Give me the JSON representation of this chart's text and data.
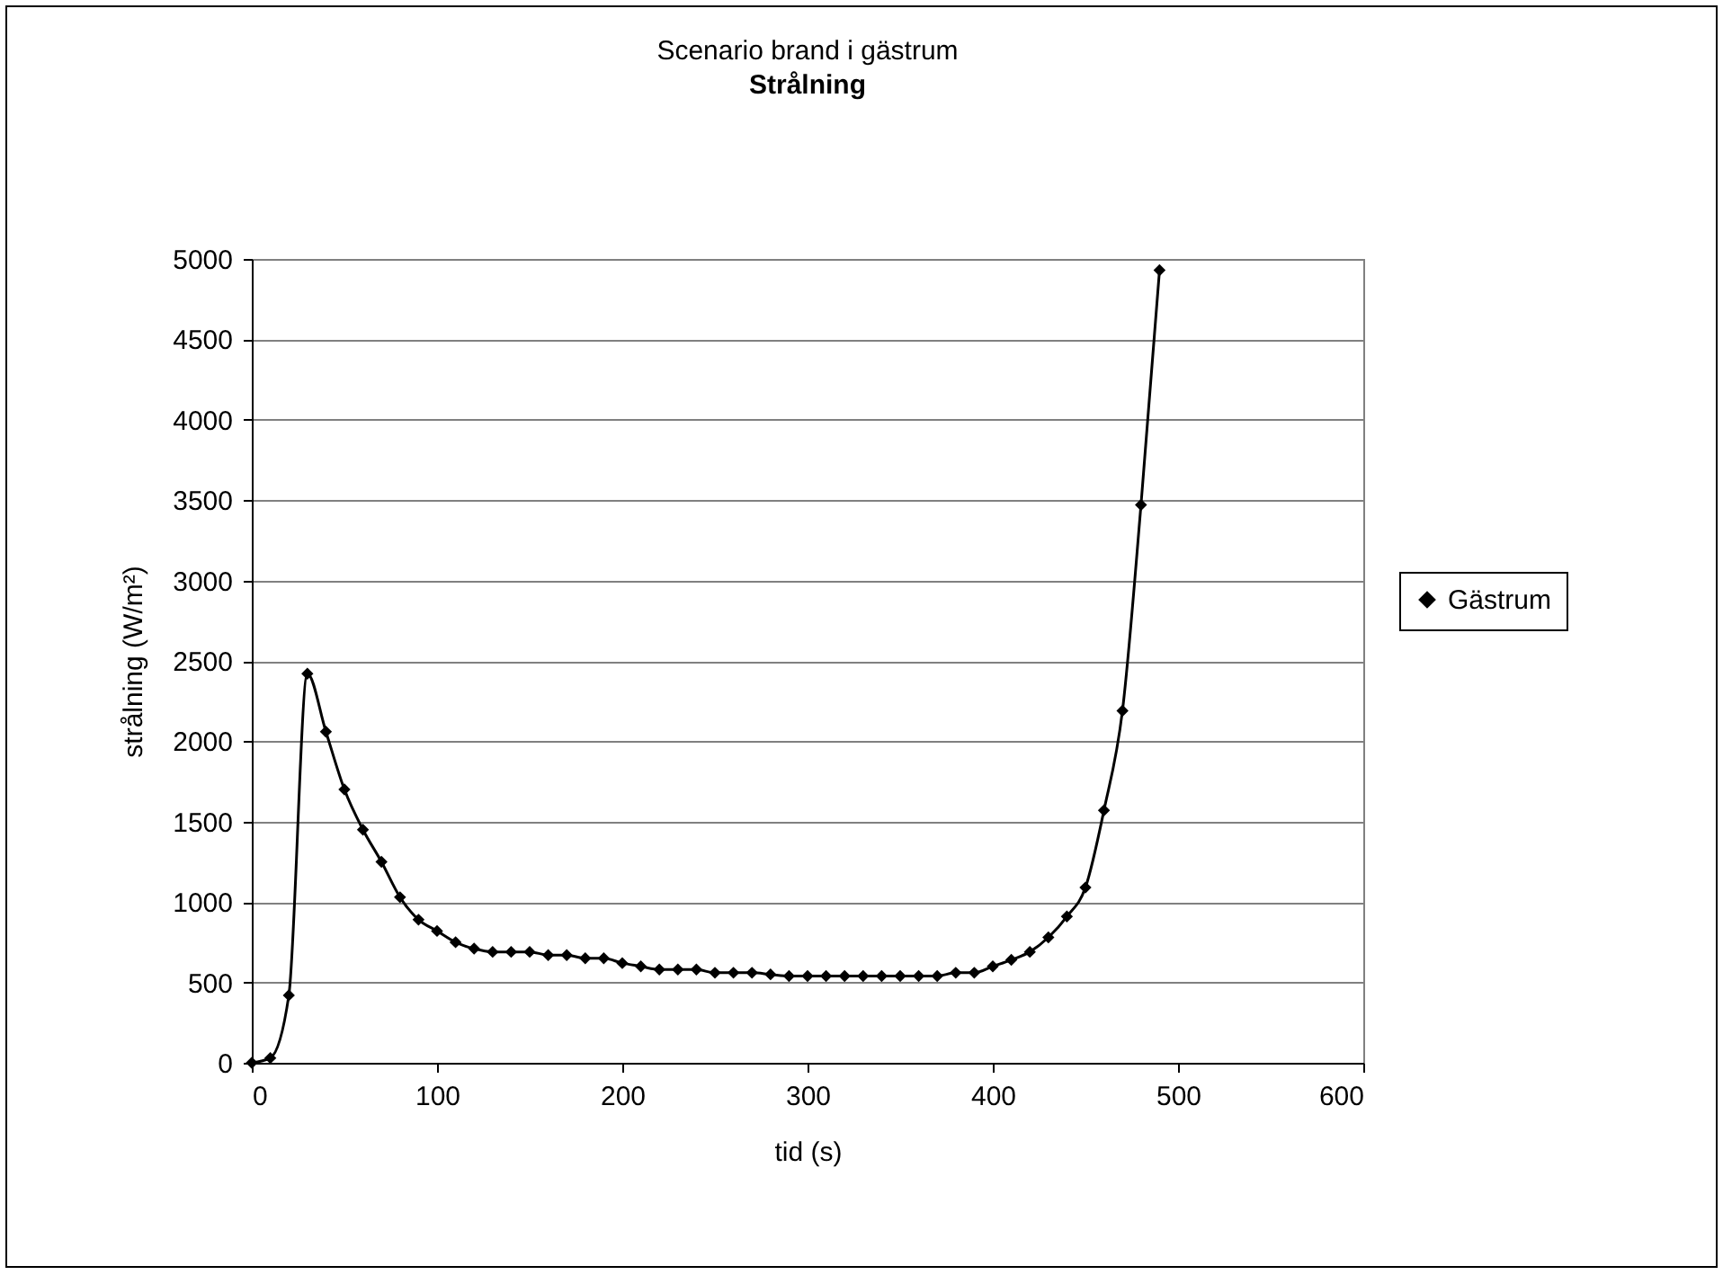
{
  "chart_data": {
    "type": "line",
    "title": "Scenario brand i gästrum",
    "subtitle": "Strålning",
    "xlabel": "tid (s)",
    "ylabel": "strålning (W/m²)",
    "x": [
      0,
      10,
      20,
      30,
      40,
      50,
      60,
      70,
      80,
      90,
      100,
      110,
      120,
      130,
      140,
      150,
      160,
      170,
      180,
      190,
      200,
      210,
      220,
      230,
      240,
      250,
      260,
      270,
      280,
      290,
      300,
      310,
      320,
      330,
      340,
      350,
      360,
      370,
      380,
      390,
      400,
      410,
      420,
      430,
      440,
      450,
      460,
      470,
      480,
      490
    ],
    "series": [
      {
        "name": "Gästrum",
        "color": "#000000",
        "values": [
          0,
          30,
          420,
          2420,
          2060,
          1700,
          1450,
          1250,
          1030,
          890,
          820,
          750,
          710,
          690,
          690,
          690,
          670,
          670,
          650,
          650,
          620,
          600,
          580,
          580,
          580,
          560,
          560,
          560,
          550,
          540,
          540,
          540,
          540,
          540,
          540,
          540,
          540,
          540,
          560,
          560,
          600,
          640,
          690,
          780,
          910,
          1090,
          1570,
          2190,
          3470,
          4930
        ]
      }
    ],
    "xlim": [
      0,
      600
    ],
    "xticks": [
      0,
      100,
      200,
      300,
      400,
      500,
      600
    ],
    "ylim": [
      0,
      5000
    ],
    "yticks": [
      0,
      500,
      1000,
      1500,
      2000,
      2500,
      3000,
      3500,
      4000,
      4500,
      5000
    ],
    "grid": "y",
    "legend": "right",
    "marker": "diamond",
    "line_style": "solid"
  }
}
